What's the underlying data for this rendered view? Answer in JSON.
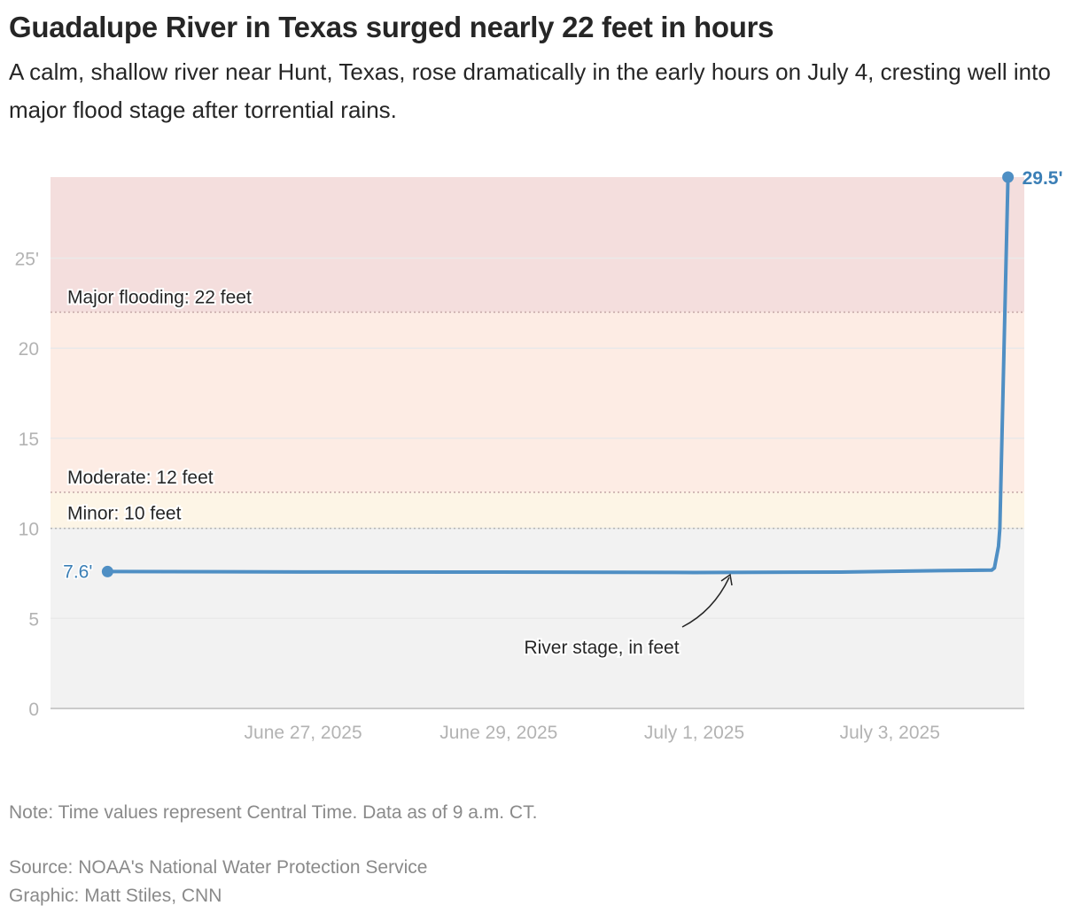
{
  "title": "Guadalupe River in Texas surged nearly 22 feet in hours",
  "subtitle": "A calm, shallow river near Hunt, Texas, rose dramatically in the early hours on July 4, cresting well into major flood stage after torrential rains.",
  "note": "Note: Time values represent Central Time. Data as of 9 a.m. CT.",
  "source": "Source: NOAA's National Water Protection Service",
  "credit": "Graphic: Matt Stiles, CNN",
  "chart_data": {
    "type": "line",
    "xlim": [
      "2025-06-24T10:00",
      "2025-07-04T09:00"
    ],
    "ylim": [
      0,
      29.5
    ],
    "yticks": [
      0,
      5,
      10,
      15,
      20,
      25
    ],
    "ytick_labels": [
      "0",
      "5",
      "10",
      "15",
      "20",
      "25'"
    ],
    "xticks": [
      "2025-06-27",
      "2025-06-29",
      "2025-07-01",
      "2025-07-03"
    ],
    "xtick_labels": [
      "June 27, 2025",
      "June 29, 2025",
      "July 1, 2025",
      "July 3, 2025"
    ],
    "grid": true,
    "series": [
      {
        "color": "#4f8fc4",
        "points": [
          [
            "2025-06-25T00:00",
            7.6
          ],
          [
            "2025-06-27T00:00",
            7.58
          ],
          [
            "2025-06-29T00:00",
            7.57
          ],
          [
            "2025-07-01T00:00",
            7.55
          ],
          [
            "2025-07-02T12:00",
            7.57
          ],
          [
            "2025-07-03T12:00",
            7.65
          ],
          [
            "2025-07-04T01:00",
            7.68
          ],
          [
            "2025-07-04T01:40",
            7.8
          ],
          [
            "2025-07-04T02:40",
            9.0
          ],
          [
            "2025-07-04T03:00",
            10.0
          ],
          [
            "2025-07-04T05:00",
            29.5
          ]
        ]
      }
    ],
    "start_label": "7.6'",
    "end_label": "29.5'",
    "annotation": "River stage, in feet",
    "bands": [
      {
        "label": "Major flooding: 22 feet",
        "from": 22,
        "to": 29.5,
        "color": "#f4dedd"
      },
      {
        "label": "Moderate: 12 feet",
        "from": 12,
        "to": 22,
        "color": "#fdece4"
      },
      {
        "label": "Minor: 10 feet",
        "from": 10,
        "to": 12,
        "color": "#fdf5e6"
      },
      {
        "label": "",
        "from": 0,
        "to": 10,
        "color": "#f2f2f2"
      }
    ]
  }
}
